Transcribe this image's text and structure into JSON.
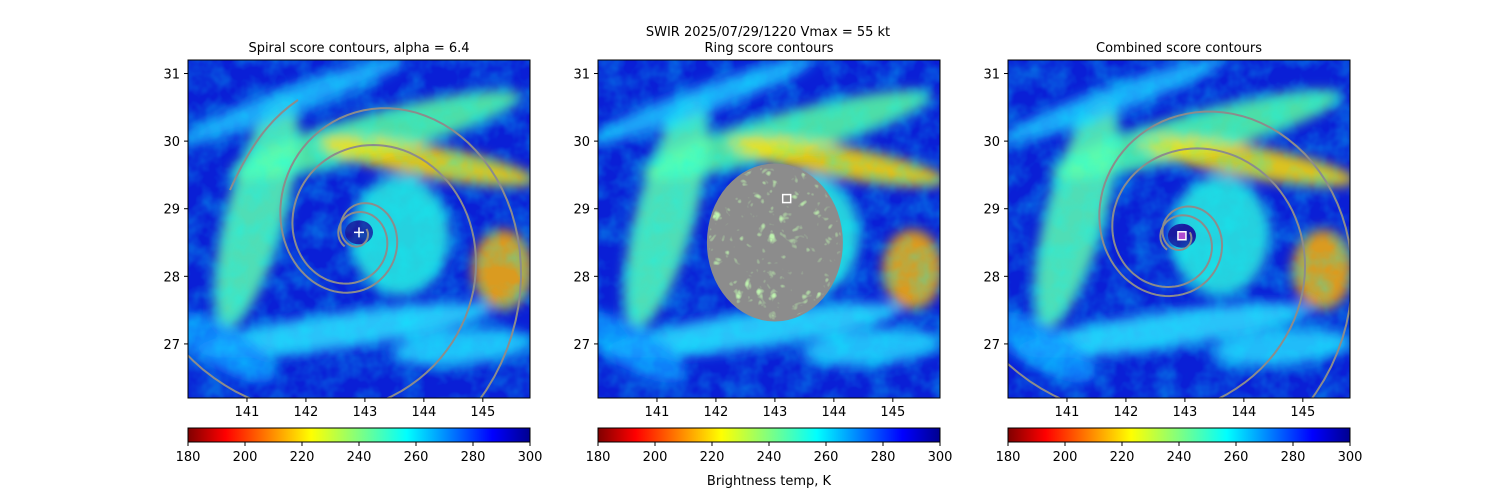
{
  "suptitle": {
    "line1": "SWIR  2025/07/29/1220    Vmax = 55 kt"
  },
  "chart_data": [
    {
      "type": "heatmap",
      "title": "Spiral score contours, alpha =  6.4",
      "xlabel": "",
      "ylabel": "",
      "xlim": [
        140.0,
        145.8
      ],
      "ylim": [
        26.2,
        31.2
      ],
      "xticks": [
        "141",
        "142",
        "143",
        "144",
        "145"
      ],
      "yticks": [
        "27",
        "28",
        "29",
        "30",
        "31"
      ],
      "overlay": "spiral contours",
      "center_marker": {
        "lon": 142.9,
        "lat": 28.65,
        "shape": "plus"
      },
      "colorbar": {
        "label": "",
        "ticks": [
          "180",
          "200",
          "220",
          "240",
          "260",
          "280",
          "300"
        ],
        "range": [
          180,
          300
        ]
      }
    },
    {
      "type": "heatmap",
      "title": "Ring score contours",
      "xlabel": "",
      "ylabel": "",
      "xlim": [
        140.0,
        145.8
      ],
      "ylim": [
        26.2,
        31.2
      ],
      "xticks": [
        "141",
        "142",
        "143",
        "144",
        "145"
      ],
      "yticks": [
        "27",
        "28",
        "29",
        "30",
        "31"
      ],
      "overlay": "ring score disk",
      "center_marker": {
        "lon": 143.2,
        "lat": 29.15,
        "shape": "square"
      },
      "colorbar": {
        "label": "Brightness temp, K",
        "ticks": [
          "180",
          "200",
          "220",
          "240",
          "260",
          "280",
          "300"
        ],
        "range": [
          180,
          300
        ]
      }
    },
    {
      "type": "heatmap",
      "title": "Combined score contours",
      "xlabel": "",
      "ylabel": "",
      "xlim": [
        140.0,
        145.8
      ],
      "ylim": [
        26.2,
        31.2
      ],
      "xticks": [
        "141",
        "142",
        "143",
        "144",
        "145"
      ],
      "yticks": [
        "27",
        "28",
        "29",
        "30",
        "31"
      ],
      "overlay": "spiral contours",
      "center_marker": {
        "lon": 142.95,
        "lat": 28.6,
        "shape": "square"
      },
      "colorbar": {
        "label": "",
        "ticks": [
          "180",
          "200",
          "220",
          "240",
          "260",
          "280",
          "300"
        ],
        "range": [
          180,
          300
        ]
      }
    }
  ],
  "colors": {
    "contour": "#8c8c8c",
    "marker": "#ffffff",
    "background": "#00008f",
    "eye": "#1a1aa0"
  }
}
